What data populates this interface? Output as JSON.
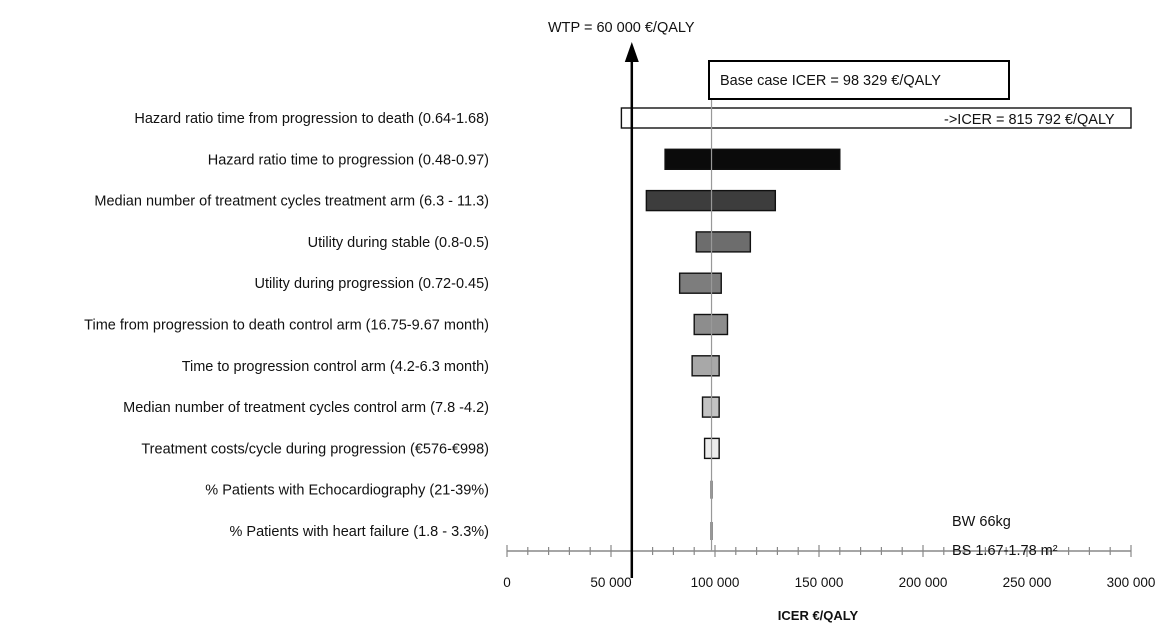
{
  "chart_data": {
    "type": "bar",
    "subtype": "tornado",
    "title": "",
    "xlabel": "ICER €/QALY",
    "xlim": [
      0,
      300000
    ],
    "x_ticks": [
      0,
      50000,
      100000,
      150000,
      200000,
      250000,
      300000
    ],
    "x_tick_labels": [
      "0",
      "50 000",
      "100 000",
      "150 000",
      "200 000",
      "250 000",
      "300 000"
    ],
    "base_case": 98329,
    "base_case_label": "Base case ICER = 98 329 €/QALY",
    "wtp": 60000,
    "wtp_label": "WTP = 60 000 €/QALY",
    "overflow_label": "->ICER = 815 792 €/QALY",
    "note_lines": [
      "BW 66kg",
      "BS 1.67-1.78 m²"
    ],
    "categories": [
      "Hazard ratio time from progression to death (0.64-1.68)",
      "Hazard ratio time to progression (0.48-0.97)",
      "Median number of treatment cycles treatment arm (6.3 - 11.3)",
      "Utility during stable (0.8-0.5)",
      "Utility during progression (0.72-0.45)",
      "Time from progression to death control arm (16.75-9.67 month)",
      "Time to progression control arm (4.2-6.3 month)",
      "Median number of treatment cycles control arm (7.8 -4.2)",
      "Treatment costs/cycle during progression (€576-€998)",
      "% Patients with Echocardiography (21-39%)",
      "% Patients with heart failure (1.8 - 3.3%)"
    ],
    "low": [
      55000,
      76000,
      67000,
      91000,
      83000,
      90000,
      89000,
      94000,
      95000,
      98329,
      98329
    ],
    "high": [
      815792,
      160000,
      129000,
      117000,
      103000,
      106000,
      102000,
      102000,
      102000,
      98329,
      98329
    ],
    "colors": [
      "#ffffff",
      "#0b0b0b",
      "#3d3d3d",
      "#6d6d6d",
      "#7d7d7d",
      "#8d8d8d",
      "#a8a8a8",
      "#c3c3c3",
      "#ececec",
      "#cccccc",
      "#cccccc"
    ]
  }
}
